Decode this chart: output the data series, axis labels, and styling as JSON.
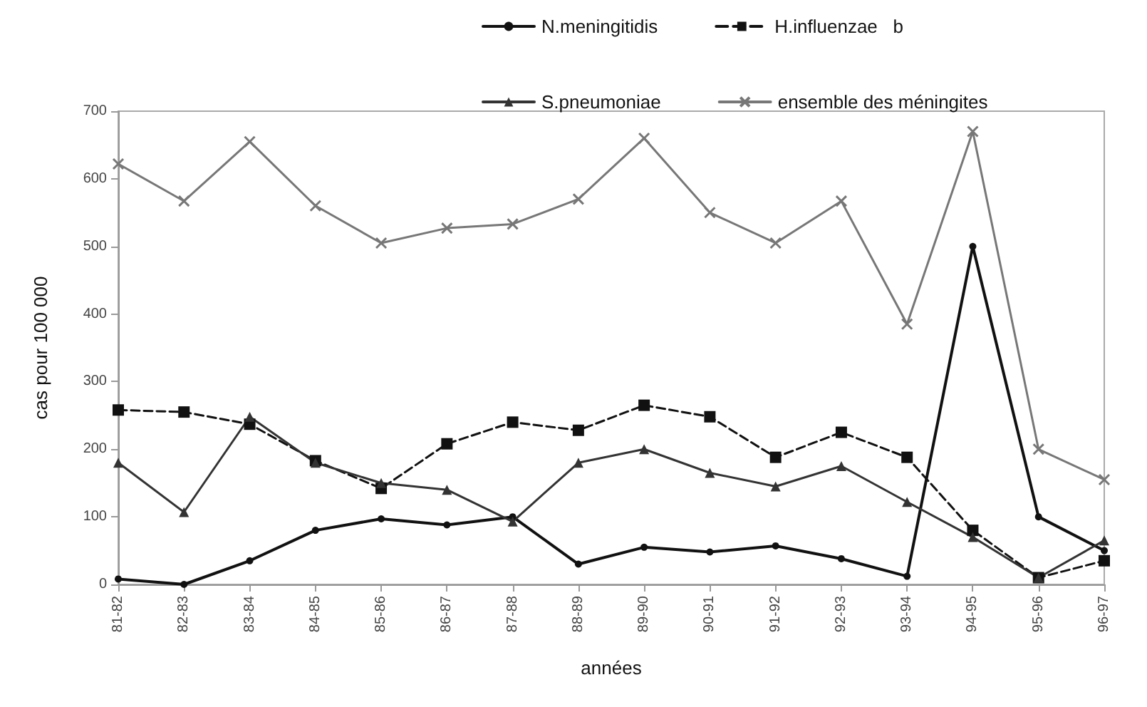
{
  "chart_data": {
    "type": "line",
    "xlabel": "années",
    "ylabel": "cas pour 100 000",
    "categories": [
      "81-82",
      "82-83",
      "83-84",
      "84-85",
      "85-86",
      "86-87",
      "87-88",
      "88-89",
      "89-90",
      "90-91",
      "91-92",
      "92-93",
      "93-94",
      "94-95",
      "95-96",
      "96-97"
    ],
    "series": [
      {
        "name": "N.meningitidis",
        "color": "#111111",
        "marker": "circle",
        "line_style": "solid",
        "values": [
          8,
          0,
          35,
          80,
          97,
          88,
          100,
          30,
          55,
          48,
          57,
          38,
          12,
          500,
          100,
          50
        ]
      },
      {
        "name": "H.influenzae   b",
        "color": "#111111",
        "marker": "square",
        "line_style": "dashed",
        "values": [
          258,
          255,
          237,
          183,
          142,
          208,
          240,
          228,
          265,
          248,
          188,
          225,
          188,
          80,
          10,
          35
        ]
      },
      {
        "name": "S.pneumoniae",
        "color": "#333333",
        "marker": "triangle",
        "line_style": "solid",
        "values": [
          180,
          107,
          248,
          180,
          150,
          140,
          93,
          180,
          200,
          165,
          145,
          175,
          122,
          70,
          10,
          65
        ]
      },
      {
        "name": "ensemble des méningites",
        "color": "#777777",
        "marker": "cross",
        "line_style": "solid",
        "values": [
          622,
          567,
          655,
          560,
          505,
          527,
          533,
          570,
          660,
          550,
          505,
          567,
          385,
          670,
          200,
          155
        ]
      }
    ],
    "ylim": [
      0,
      700
    ],
    "yticks": [
      0,
      100,
      200,
      300,
      400,
      500,
      600,
      700
    ],
    "grid": false,
    "legend": "top"
  }
}
